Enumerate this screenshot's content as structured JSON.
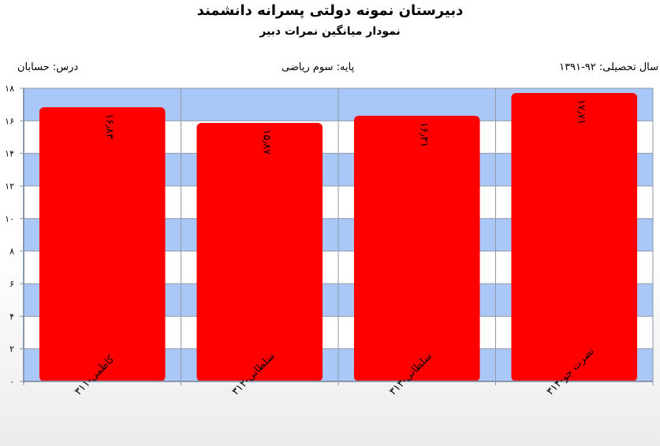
{
  "header": {
    "title": "دبیرستان  نمونه دولتی پسرانه دانشمند",
    "subtitle": "نمودار میانگین نمرات دبیر",
    "year_label": "سال تحصیلی: ۹۲-۱۳۹۱",
    "grade_label": "پایه: سوم ریاضی",
    "subject_label": "درس: حسابان"
  },
  "colors": {
    "bar": "#ff0000",
    "band": "#a9c8f7",
    "grid": "#8f99a8",
    "axis": "#8a96aa"
  },
  "chart_data": {
    "type": "bar",
    "categories": [
      "کاظمی-۳۱۱",
      "سلطانی-۳۱۲",
      "سلطانی-۳۱۳",
      "نصرت جو-۳۱۴"
    ],
    "values": [
      16.83,
      15.87,
      16.31,
      17.71
    ],
    "value_labels": [
      "۱۶٫۸۳",
      "۱۵٫۸۷",
      "۱۶٫۳۱",
      "۱۷٫۷۱"
    ],
    "ylim": [
      0,
      18
    ],
    "yticks": [
      0,
      2,
      4,
      6,
      8,
      10,
      12,
      14,
      16,
      18
    ],
    "ytick_labels": [
      "۰",
      "۲",
      "۴",
      "۶",
      "۸",
      "۱۰",
      "۱۲",
      "۱۴",
      "۱۶",
      "۱۸"
    ],
    "title": "",
    "xlabel": "",
    "ylabel": "",
    "grid": true,
    "legend": "none"
  }
}
